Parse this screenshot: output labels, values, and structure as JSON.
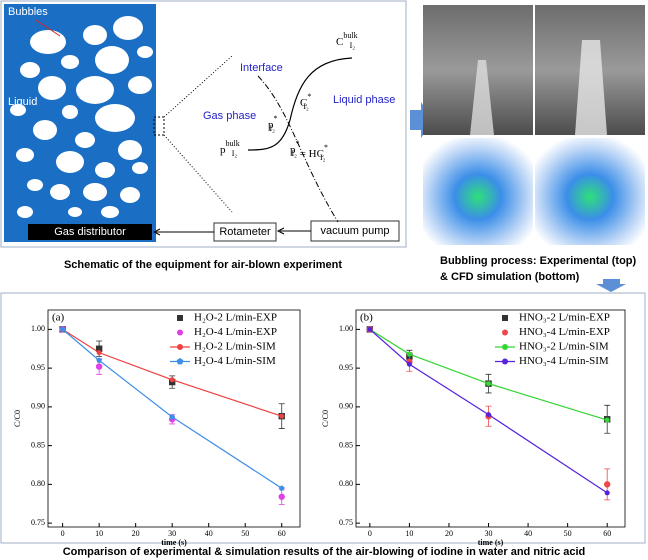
{
  "schematic": {
    "bubbles_label": "Bubbles",
    "liquid_label": "Liquid",
    "distributor": "Gas distributor",
    "rotameter": "Rotameter",
    "pump": "vacuum pump",
    "interface": "Interface",
    "gas_phase": "Gas phase",
    "liquid_phase": "Liquid phase",
    "c_bulk": {
      "base": "C",
      "sub": "I₂",
      "sup": "bulk"
    },
    "c_star": {
      "base": "C",
      "sub": "I₂",
      "sup": "*"
    },
    "p_star": {
      "base": "p",
      "sub": "I₂",
      "sup": "*"
    },
    "p_bulk": {
      "base": "p",
      "sub": "I₂",
      "sup": "bulk"
    },
    "equation": {
      "left": {
        "base": "p",
        "sub": "I₂",
        "sup": "*"
      },
      "right": {
        "base": " = HC",
        "sub": "I₂",
        "sup": "*"
      }
    },
    "caption": "Schematic of the equipment for air-blown experiment"
  },
  "bubbling": {
    "caption_1": "Bubbling process: Experimental (top)",
    "caption_2": "& CFD simulation (bottom)"
  },
  "footer": "Comparison of experimental & simulation results of the air-blowing of iodine in water and nitric acid",
  "chart_data": [
    {
      "type": "line",
      "panel_label": "(a)",
      "x_label": "time (s)",
      "y_label": "C/C0",
      "x": [
        0,
        10,
        30,
        60
      ],
      "xlim": [
        -4,
        65
      ],
      "xticks": [
        0,
        10,
        20,
        30,
        40,
        50,
        60
      ],
      "ylim": [
        0.745,
        1.025
      ],
      "yticks": [
        {
          "value": 0.75,
          "label": "0.75"
        },
        {
          "value": 0.8,
          "label": "0.80"
        },
        {
          "value": 0.85,
          "label": "0.85"
        },
        {
          "value": 0.9,
          "label": "0.90"
        },
        {
          "value": 0.95,
          "label": "0.95"
        },
        {
          "value": 1.0,
          "label": "1.00"
        }
      ],
      "legend": "top-right",
      "series": [
        {
          "name": "H₂O-2 L/min-EXP",
          "color": "#333333",
          "marker": "square",
          "style": "markers",
          "values": [
            1.0,
            0.975,
            0.932,
            0.888
          ],
          "errors": [
            null,
            0.01,
            0.008,
            0.016
          ]
        },
        {
          "name": "H₂O-4 L/min-EXP",
          "color": "#e040e6",
          "marker": "circle",
          "style": "markers",
          "values": [
            1.0,
            0.952,
            0.884,
            0.784
          ],
          "errors": [
            null,
            0.01,
            0.006,
            0.01
          ]
        },
        {
          "name": "H₂O-2 L/min-SIM",
          "color": "#f04040",
          "marker": "circle",
          "style": "line",
          "values": [
            1.0,
            0.97,
            0.935,
            0.888
          ]
        },
        {
          "name": "H₂O-4 L/min-SIM",
          "color": "#3e8ee6",
          "marker": "pentagon",
          "style": "line",
          "values": [
            1.0,
            0.96,
            0.887,
            0.795
          ]
        }
      ]
    },
    {
      "type": "line",
      "panel_label": "(b)",
      "x_label": "time (s)",
      "y_label": "C/C0",
      "x": [
        0,
        10,
        30,
        60
      ],
      "xlim": [
        -3.5,
        64.5
      ],
      "xticks": [
        0,
        10,
        20,
        30,
        40,
        50,
        60
      ],
      "ylim": [
        0.745,
        1.025
      ],
      "yticks": [
        {
          "value": 0.75,
          "label": "0.75"
        },
        {
          "value": 0.8,
          "label": "0.80"
        },
        {
          "value": 0.85,
          "label": "0.85"
        },
        {
          "value": 0.9,
          "label": "0.90"
        },
        {
          "value": 0.95,
          "label": "0.95"
        },
        {
          "value": 1.0,
          "label": "1.00"
        }
      ],
      "legend": "top-right",
      "series": [
        {
          "name": "HNO₃-2 L/min-EXP",
          "color": "#333333",
          "marker": "square",
          "style": "markers",
          "values": [
            1.0,
            0.965,
            0.93,
            0.884
          ],
          "errors": [
            null,
            0.008,
            0.012,
            0.018
          ]
        },
        {
          "name": "HNO₃-4 L/min-EXP",
          "color": "#f04848",
          "marker": "circle",
          "style": "markers",
          "values": [
            1.0,
            0.958,
            0.888,
            0.8
          ],
          "errors": [
            null,
            0.012,
            0.013,
            0.02
          ]
        },
        {
          "name": "HNO₃-2 L/min-SIM",
          "color": "#33d633",
          "marker": "circle",
          "style": "line",
          "values": [
            1.0,
            0.968,
            0.93,
            0.883
          ]
        },
        {
          "name": "HNO₃-4 L/min-SIM",
          "color": "#5522dd",
          "marker": "circle",
          "style": "line",
          "values": [
            1.0,
            0.955,
            0.89,
            0.789
          ]
        }
      ]
    }
  ]
}
